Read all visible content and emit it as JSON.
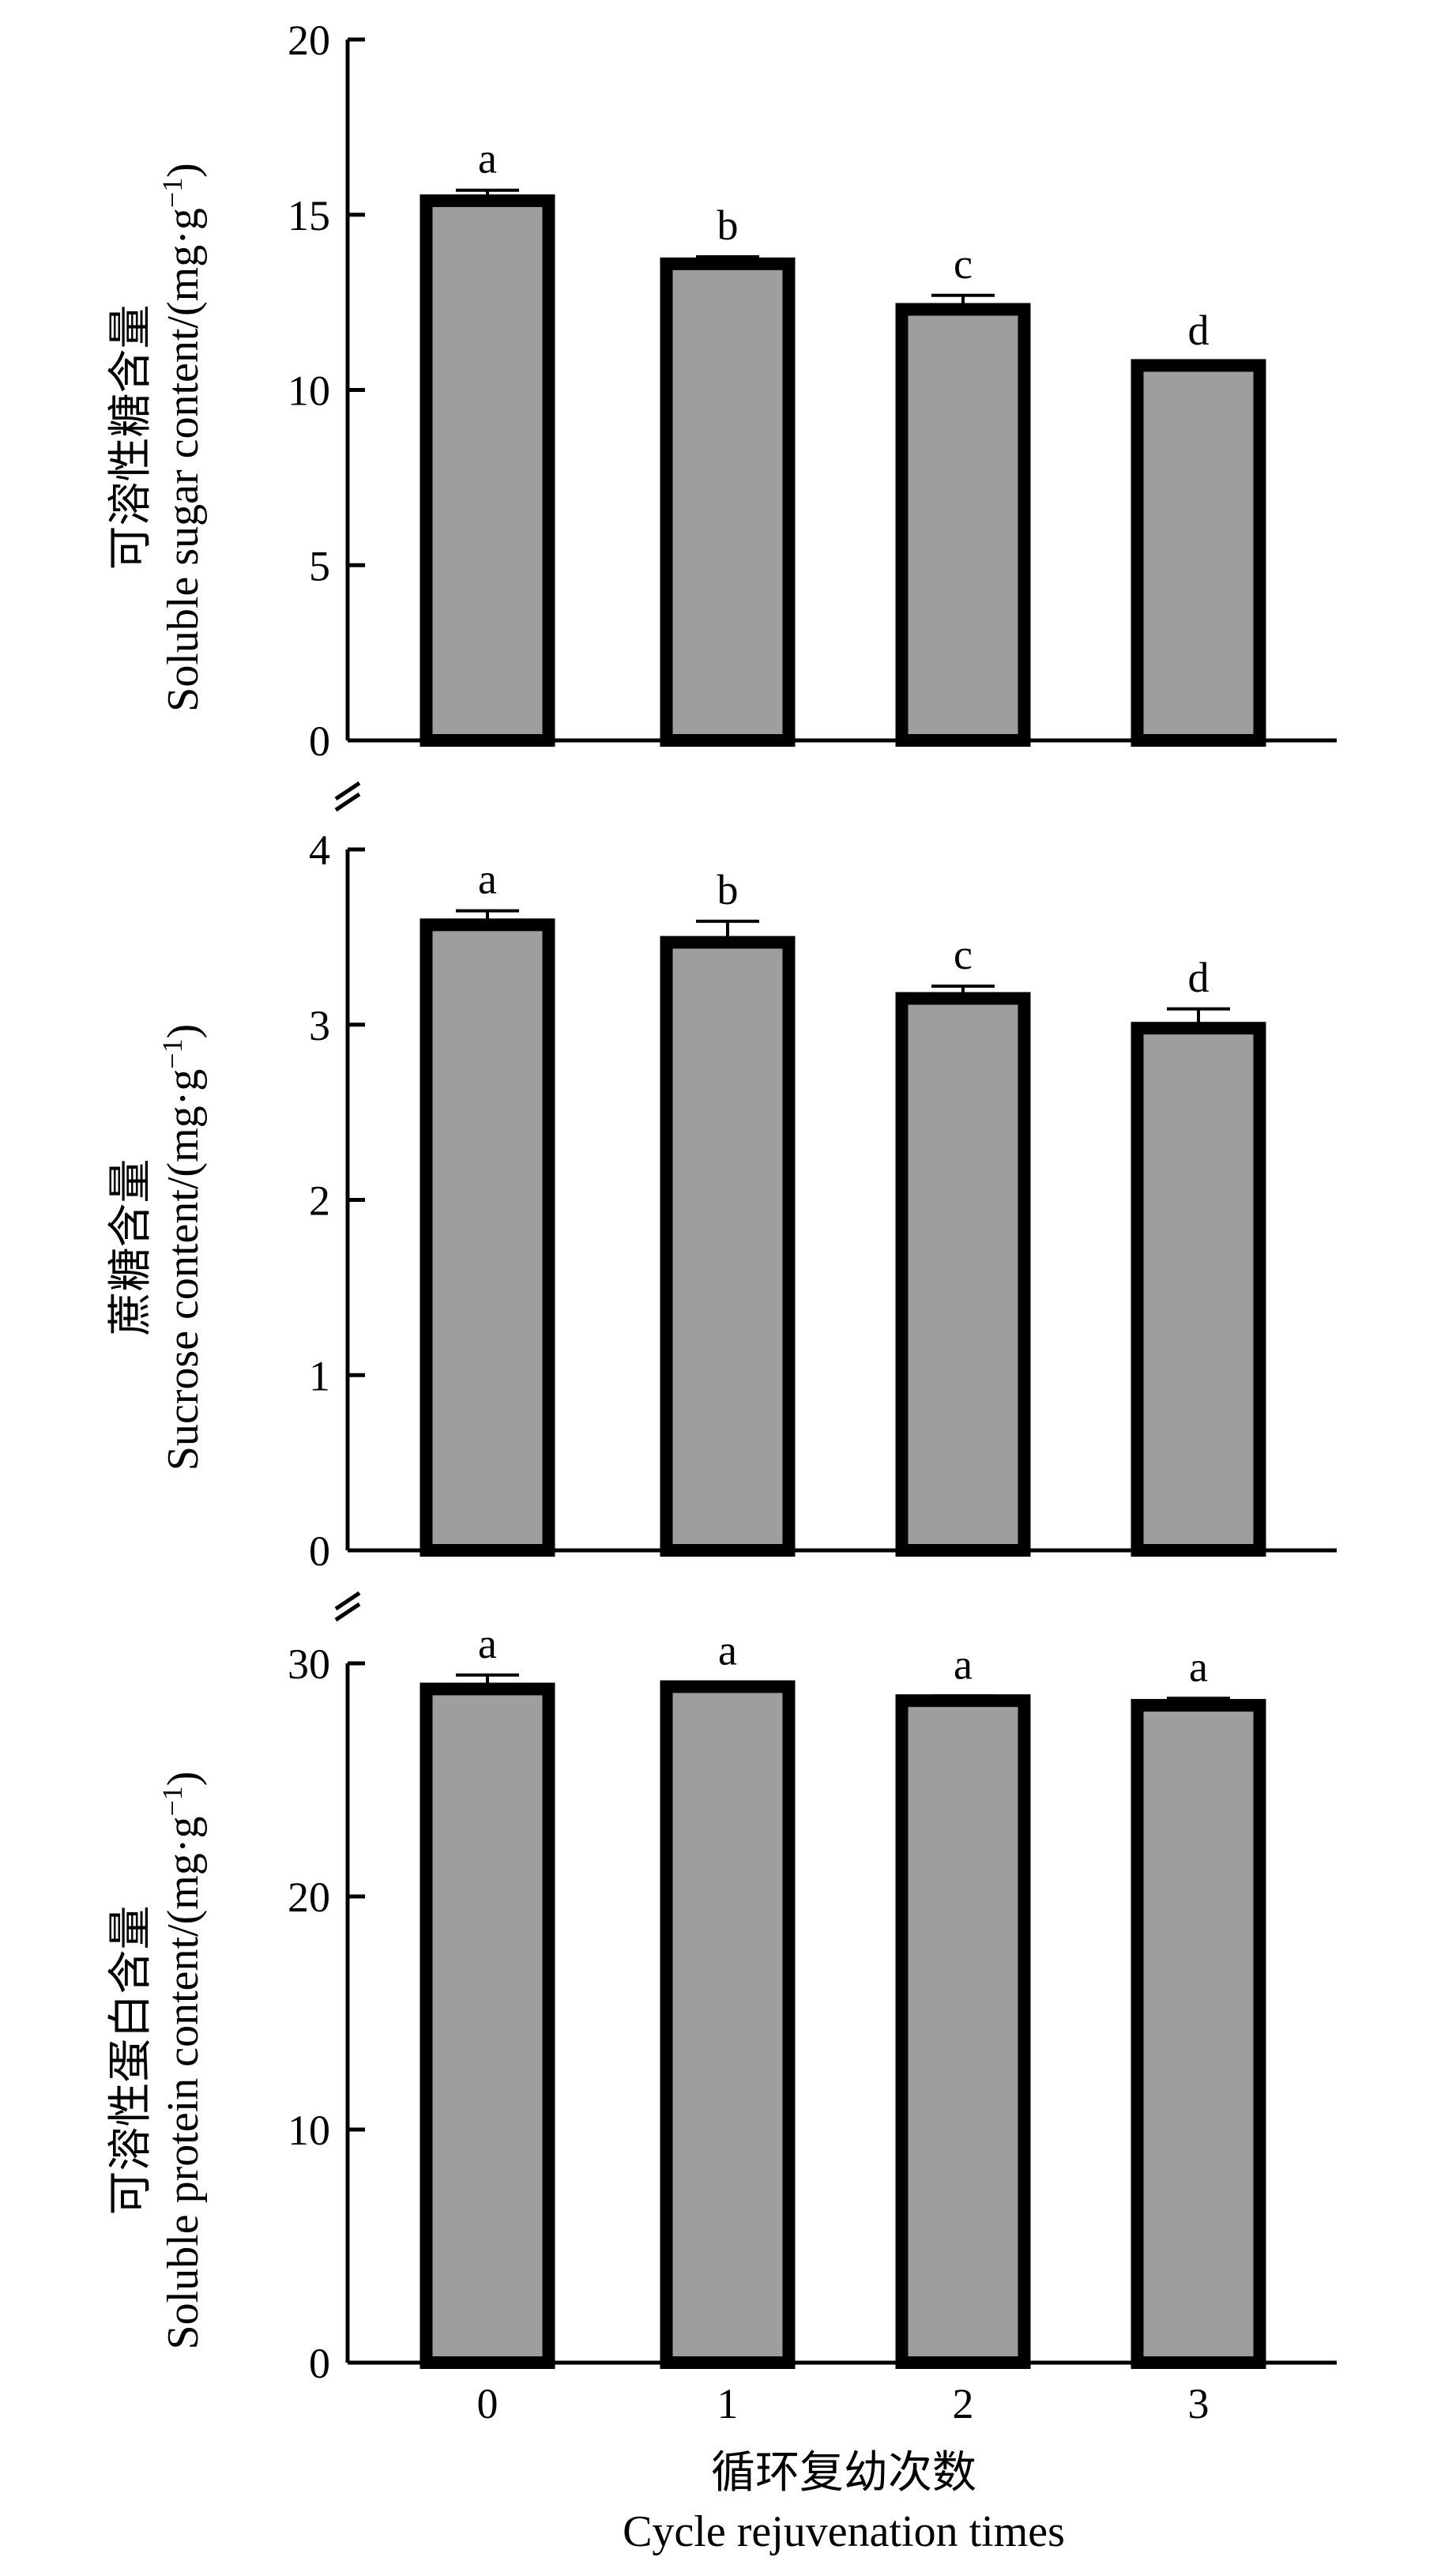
{
  "chart_data": [
    {
      "type": "bar",
      "categories": [
        "0",
        "1",
        "2",
        "3"
      ],
      "values": [
        15.4,
        13.6,
        12.3,
        10.7
      ],
      "errors": [
        0.3,
        0.2,
        0.4,
        0.1
      ],
      "letters": [
        "a",
        "b",
        "c",
        "d"
      ],
      "ylim": [
        0,
        20
      ],
      "yticks": [
        0,
        5,
        10,
        15,
        20
      ],
      "ylabel_cn": "可溶性糖含量",
      "ylabel_en": "Soluble sugar content/(mg·g",
      "ylabel_sup": "−1",
      "ylabel_close": ")"
    },
    {
      "type": "bar",
      "categories": [
        "0",
        "1",
        "2",
        "3"
      ],
      "values": [
        3.57,
        3.47,
        3.15,
        2.98
      ],
      "errors": [
        0.08,
        0.12,
        0.07,
        0.11
      ],
      "letters": [
        "a",
        "b",
        "c",
        "d"
      ],
      "ylim": [
        0,
        4
      ],
      "yticks": [
        0,
        1,
        2,
        3,
        4
      ],
      "ylabel_cn": "蔗糖含量",
      "ylabel_en": "Sucrose content/(mg·g",
      "ylabel_sup": "−1",
      "ylabel_close": ")"
    },
    {
      "type": "bar",
      "categories": [
        "0",
        "1",
        "2",
        "3"
      ],
      "values": [
        28.9,
        29.0,
        28.4,
        28.2
      ],
      "errors": [
        0.6,
        0.2,
        0.2,
        0.3
      ],
      "letters": [
        "a",
        "a",
        "a",
        "a"
      ],
      "ylim": [
        0,
        30
      ],
      "yticks": [
        0,
        10,
        20,
        30
      ],
      "ylabel_cn": "可溶性蛋白含量",
      "ylabel_en": "Soluble protein content/(mg·g",
      "ylabel_sup": "−1",
      "ylabel_close": ")"
    }
  ],
  "xaxis": {
    "tick_labels": [
      "0",
      "1",
      "2",
      "3"
    ],
    "label_cn": "循环复幼次数",
    "label_en": "Cycle rejuvenation times"
  }
}
